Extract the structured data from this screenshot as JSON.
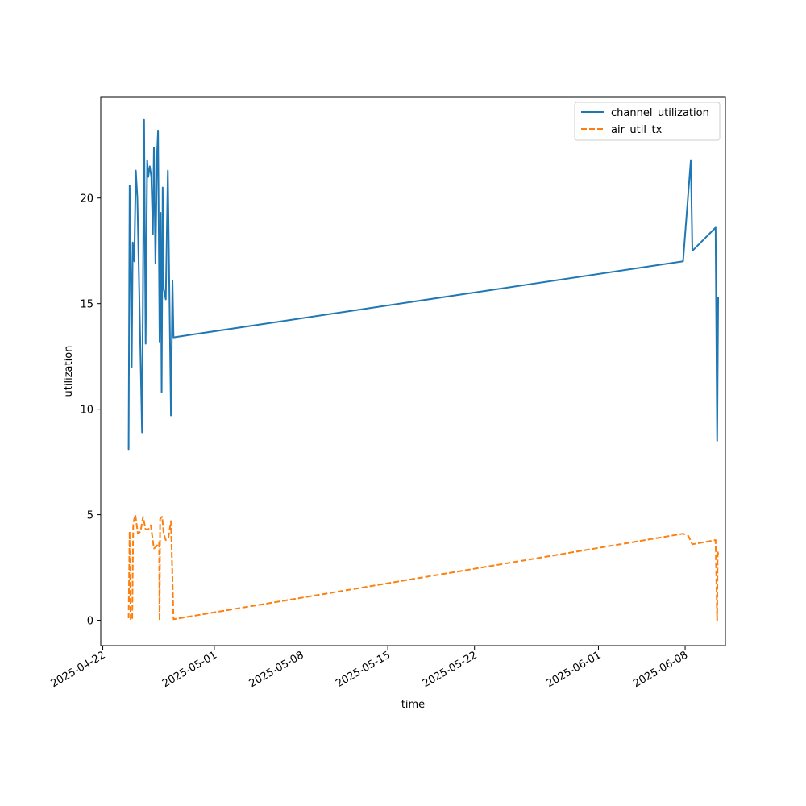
{
  "chart_data": {
    "type": "line",
    "title": "",
    "xlabel": "time",
    "ylabel": "utilization",
    "xlim": [
      "2025-04-21T20:00",
      "2025-06-11T06:00"
    ],
    "ylim": [
      -1.2,
      24.8
    ],
    "x_ticks": [
      "2025-04-22",
      "2025-05-01",
      "2025-05-08",
      "2025-05-15",
      "2025-05-22",
      "2025-06-01",
      "2025-06-08"
    ],
    "y_ticks": [
      0,
      5,
      10,
      15,
      20
    ],
    "grid": false,
    "legend_position": "top-right",
    "series": [
      {
        "name": "channel_utilization",
        "color": "#1f77b4",
        "dash": "solid",
        "points": [
          [
            "2025-04-24T02:00",
            8.1
          ],
          [
            "2025-04-24T04:00",
            20.6
          ],
          [
            "2025-04-24T06:00",
            17.2
          ],
          [
            "2025-04-24T08:00",
            12.0
          ],
          [
            "2025-04-24T10:00",
            17.9
          ],
          [
            "2025-04-24T13:00",
            17.0
          ],
          [
            "2025-04-24T16:00",
            21.3
          ],
          [
            "2025-04-24T19:00",
            20.0
          ],
          [
            "2025-04-25T04:00",
            8.9
          ],
          [
            "2025-04-25T08:00",
            23.7
          ],
          [
            "2025-04-25T11:00",
            13.1
          ],
          [
            "2025-04-25T14:00",
            21.8
          ],
          [
            "2025-04-25T16:00",
            21.0
          ],
          [
            "2025-04-25T19:00",
            21.5
          ],
          [
            "2025-04-25T22:00",
            21.0
          ],
          [
            "2025-04-26T01:00",
            18.3
          ],
          [
            "2025-04-26T03:00",
            22.4
          ],
          [
            "2025-04-26T06:00",
            16.9
          ],
          [
            "2025-04-26T09:00",
            22.0
          ],
          [
            "2025-04-26T11:00",
            23.2
          ],
          [
            "2025-04-26T14:00",
            13.2
          ],
          [
            "2025-04-26T16:00",
            19.3
          ],
          [
            "2025-04-26T18:00",
            10.8
          ],
          [
            "2025-04-26T20:00",
            20.5
          ],
          [
            "2025-04-26T22:00",
            15.7
          ],
          [
            "2025-04-27T02:00",
            15.2
          ],
          [
            "2025-04-27T06:00",
            21.3
          ],
          [
            "2025-04-27T12:00",
            9.7
          ],
          [
            "2025-04-27T15:00",
            16.1
          ],
          [
            "2025-04-27T17:00",
            13.4
          ],
          [
            "2025-06-07T20:00",
            17.0
          ],
          [
            "2025-06-08T11:00",
            21.8
          ],
          [
            "2025-06-08T14:00",
            17.5
          ],
          [
            "2025-06-10T11:00",
            18.6
          ],
          [
            "2025-06-10T14:00",
            8.5
          ],
          [
            "2025-06-10T16:00",
            15.3
          ]
        ]
      },
      {
        "name": "air_util_tx",
        "color": "#ff7f0e",
        "dash": "dashed",
        "points": [
          [
            "2025-04-24T02:00",
            0.1
          ],
          [
            "2025-04-24T04:00",
            4.2
          ],
          [
            "2025-04-24T06:00",
            0.0
          ],
          [
            "2025-04-24T09:00",
            0.1
          ],
          [
            "2025-04-24T11:00",
            4.6
          ],
          [
            "2025-04-24T15:00",
            5.0
          ],
          [
            "2025-04-24T20:00",
            4.1
          ],
          [
            "2025-04-25T01:00",
            4.2
          ],
          [
            "2025-04-25T06:00",
            4.9
          ],
          [
            "2025-04-25T11:00",
            4.3
          ],
          [
            "2025-04-25T16:00",
            4.3
          ],
          [
            "2025-04-25T21:00",
            4.5
          ],
          [
            "2025-04-26T03:00",
            3.4
          ],
          [
            "2025-04-26T08:00",
            3.5
          ],
          [
            "2025-04-26T13:00",
            3.7
          ],
          [
            "2025-04-26T14:00",
            0.0
          ],
          [
            "2025-04-26T15:00",
            4.8
          ],
          [
            "2025-04-26T19:00",
            4.9
          ],
          [
            "2025-04-26T22:00",
            4.1
          ],
          [
            "2025-04-27T02:00",
            3.8
          ],
          [
            "2025-04-27T07:00",
            3.9
          ],
          [
            "2025-04-27T12:00",
            4.7
          ],
          [
            "2025-04-27T17:00",
            0.05
          ],
          [
            "2025-06-07T20:00",
            4.1
          ],
          [
            "2025-06-08T06:00",
            4.0
          ],
          [
            "2025-06-08T14:00",
            3.6
          ],
          [
            "2025-06-10T11:00",
            3.8
          ],
          [
            "2025-06-10T14:00",
            0.0
          ],
          [
            "2025-06-10T15:00",
            3.3
          ],
          [
            "2025-06-10T16:00",
            3.1
          ]
        ]
      }
    ]
  }
}
